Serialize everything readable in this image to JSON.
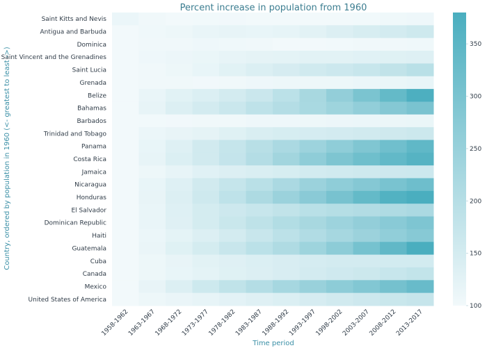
{
  "chart_data": {
    "type": "heatmap",
    "title": "Percent increase in population from 1960",
    "xlabel": "Time period",
    "ylabel": "Country, ordered by population in 1960 (<- greatest to least ->)",
    "x_categories": [
      "1958-1962",
      "1963-1967",
      "1968-1972",
      "1973-1977",
      "1978-1982",
      "1983-1987",
      "1988-1992",
      "1993-1997",
      "1998-2002",
      "2003-2007",
      "2008-2012",
      "2013-2017"
    ],
    "y_categories": [
      "Saint Kitts and Nevis",
      "Antigua and Barbuda",
      "Dominica",
      "Saint Vincent and the Grenadines",
      "Saint Lucia",
      "Grenada",
      "Belize",
      "Bahamas",
      "Barbados",
      "Trinidad and Tobago",
      "Panama",
      "Costa Rica",
      "Jamaica",
      "Nicaragua",
      "Honduras",
      "El Salvador",
      "Dominican Republic",
      "Haiti",
      "Guatemala",
      "Cuba",
      "Canada",
      "Mexico",
      "United States of America"
    ],
    "values": [
      [
        111,
        103,
        100,
        101,
        102,
        100,
        100,
        100,
        99,
        101,
        105,
        107
      ],
      [
        100,
        105,
        108,
        115,
        118,
        116,
        120,
        126,
        137,
        145,
        152,
        160
      ],
      [
        100,
        103,
        104,
        106,
        105,
        103,
        100,
        99,
        101,
        103,
        104,
        105
      ],
      [
        100,
        106,
        110,
        113,
        118,
        122,
        124,
        126,
        127,
        130,
        131,
        133
      ],
      [
        100,
        104,
        108,
        116,
        128,
        138,
        147,
        156,
        163,
        171,
        182,
        195
      ],
      [
        100,
        104,
        103,
        102,
        103,
        106,
        108,
        108,
        109,
        111,
        113,
        116
      ],
      [
        100,
        115,
        128,
        139,
        151,
        167,
        191,
        224,
        259,
        299,
        336,
        375
      ],
      [
        100,
        118,
        137,
        152,
        166,
        186,
        204,
        221,
        240,
        260,
        282,
        300
      ],
      [
        100,
        101,
        102,
        103,
        104,
        106,
        107,
        108,
        110,
        111,
        112,
        113
      ],
      [
        100,
        111,
        117,
        122,
        131,
        141,
        146,
        148,
        151,
        155,
        159,
        164
      ],
      [
        100,
        116,
        134,
        155,
        175,
        197,
        219,
        242,
        265,
        290,
        316,
        344
      ],
      [
        100,
        119,
        138,
        155,
        177,
        204,
        234,
        265,
        294,
        318,
        340,
        360
      ],
      [
        100,
        109,
        119,
        130,
        137,
        141,
        146,
        153,
        157,
        160,
        162,
        163
      ],
      [
        100,
        116,
        134,
        155,
        175,
        195,
        219,
        245,
        265,
        282,
        301,
        320
      ],
      [
        100,
        117,
        137,
        160,
        186,
        215,
        245,
        274,
        304,
        336,
        366,
        392
      ],
      [
        100,
        115,
        133,
        150,
        162,
        172,
        182,
        195,
        202,
        207,
        212,
        218
      ],
      [
        100,
        115,
        132,
        150,
        168,
        187,
        206,
        224,
        241,
        259,
        275,
        293
      ],
      [
        100,
        111,
        123,
        137,
        152,
        170,
        190,
        208,
        226,
        244,
        261,
        279
      ],
      [
        100,
        114,
        131,
        150,
        170,
        191,
        212,
        240,
        268,
        306,
        342,
        380
      ],
      [
        100,
        108,
        117,
        126,
        132,
        138,
        144,
        149,
        152,
        152,
        153,
        153
      ],
      [
        100,
        109,
        116,
        124,
        131,
        137,
        144,
        152,
        158,
        164,
        172,
        180
      ],
      [
        100,
        117,
        137,
        161,
        184,
        204,
        226,
        248,
        269,
        287,
        308,
        330
      ],
      [
        100,
        108,
        114,
        119,
        125,
        132,
        139,
        147,
        155,
        162,
        168,
        174
      ]
    ],
    "vmin": 100,
    "vmax": 380,
    "colorbar_ticks": [
      100,
      150,
      200,
      250,
      300,
      350
    ],
    "colormap": {
      "low": "#f2f9fb",
      "high": "#4aaebf"
    },
    "grid": false
  }
}
